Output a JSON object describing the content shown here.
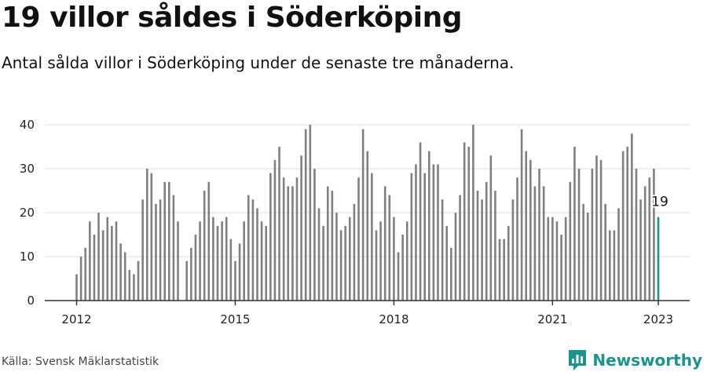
{
  "title": "19 villor såldes i Söderköping",
  "subtitle": "Antal sålda villor i Söderköping under de senaste tre månaderna.",
  "source": "Källa: Svensk Mäklarstatistik",
  "brand": {
    "name": "Newsworthy",
    "icon": "newsworthy-logo-icon",
    "color": "#19958c"
  },
  "colors": {
    "bar": "#808080",
    "highlight": "#19958c",
    "grid": "#dddddd",
    "axis": "#333333"
  },
  "chart_data": {
    "type": "bar",
    "x_axis": "monthly, 2012-01 to 2023-01",
    "ylim": [
      0,
      40
    ],
    "yticks": [
      0,
      10,
      20,
      30,
      40
    ],
    "xticks": [
      "2012",
      "2015",
      "2018",
      "2021",
      "2023"
    ],
    "grid": true,
    "highlight": {
      "label": "19",
      "value": 19,
      "index": 132
    },
    "values": [
      6,
      10,
      12,
      18,
      15,
      20,
      16,
      19,
      17,
      18,
      13,
      11,
      7,
      6,
      9,
      23,
      30,
      29,
      22,
      23,
      27,
      27,
      24,
      18,
      null,
      9,
      12,
      15,
      18,
      25,
      27,
      19,
      17,
      18,
      19,
      14,
      9,
      13,
      18,
      24,
      23,
      21,
      18,
      17,
      29,
      32,
      35,
      28,
      26,
      26,
      28,
      33,
      39,
      40,
      30,
      21,
      17,
      26,
      25,
      20,
      16,
      17,
      19,
      22,
      28,
      39,
      34,
      29,
      16,
      18,
      26,
      24,
      19,
      11,
      15,
      18,
      29,
      31,
      36,
      29,
      34,
      31,
      31,
      23,
      17,
      12,
      20,
      24,
      36,
      35,
      40,
      25,
      23,
      27,
      33,
      25,
      14,
      14,
      17,
      23,
      28,
      39,
      34,
      32,
      26,
      30,
      26,
      19,
      19,
      18,
      15,
      19,
      27,
      35,
      30,
      22,
      20,
      30,
      33,
      32,
      22,
      16,
      16,
      21,
      34,
      35,
      38,
      30,
      23,
      26,
      28,
      30,
      19
    ]
  }
}
